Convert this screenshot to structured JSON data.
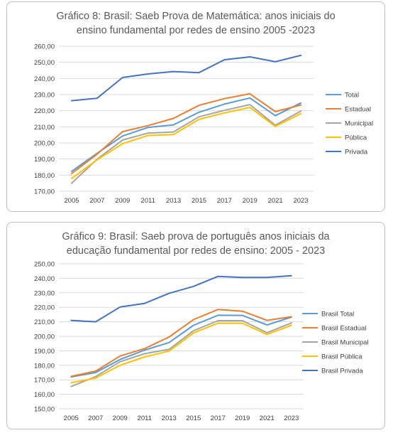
{
  "chart_data": [
    {
      "type": "line",
      "title_lines": [
        "Gráfico 8: Brasil: Saeb Prova de Matemática: anos iniciais do",
        "ensino fundamental por redes de ensino 2005 -2023"
      ],
      "x": [
        "2005",
        "2007",
        "2009",
        "2011",
        "2013",
        "2015",
        "2017",
        "2019",
        "2021",
        "2023"
      ],
      "ylim": [
        170,
        260
      ],
      "yticks": [
        "170,00",
        "180,00",
        "190,00",
        "200,00",
        "210,00",
        "220,00",
        "230,00",
        "240,00",
        "250,00",
        "260,00"
      ],
      "grid": true,
      "legend_position": "right",
      "series": [
        {
          "name": "Total",
          "color": "#5b9bd5",
          "values": [
            182.4,
            193.5,
            204.3,
            209.6,
            211.2,
            219.0,
            224.1,
            227.9,
            216.9,
            224.8
          ]
        },
        {
          "name": "Estadual",
          "color": "#ed7d31",
          "values": [
            181.0,
            193.0,
            207.0,
            210.7,
            215.2,
            223.3,
            227.5,
            230.5,
            219.4,
            223.5
          ]
        },
        {
          "name": "Municipal",
          "color": "#a5a5a5",
          "values": [
            175.0,
            189.9,
            201.8,
            206.1,
            206.8,
            216.2,
            220.2,
            223.8,
            211.0,
            219.8
          ]
        },
        {
          "name": "Pública",
          "color": "#ffc000",
          "values": [
            178.0,
            189.5,
            199.5,
            204.6,
            205.2,
            214.6,
            218.6,
            222.0,
            210.2,
            218.2
          ]
        },
        {
          "name": "Privada",
          "color": "#4472c4",
          "values": [
            226.2,
            227.7,
            240.6,
            242.8,
            244.3,
            243.6,
            251.6,
            253.4,
            250.4,
            254.3
          ]
        }
      ]
    },
    {
      "type": "line",
      "title_lines": [
        "Gráfico 9: Brasil: Saeb prova de português anos iniciais da",
        "educação fundamental por redes de ensino: 2005 - 2023"
      ],
      "x": [
        "2005",
        "2007",
        "2009",
        "2011",
        "2013",
        "2015",
        "2017",
        "2019",
        "2021",
        "2023"
      ],
      "ylim": [
        150,
        250
      ],
      "yticks": [
        "150,00",
        "160,00",
        "170,00",
        "180,00",
        "190,00",
        "200,00",
        "210,00",
        "220,00",
        "230,00",
        "240,00",
        "250,00"
      ],
      "grid": true,
      "legend_position": "right",
      "series": [
        {
          "name": "Brasil Total",
          "color": "#5b9bd5",
          "values": [
            172.0,
            175.0,
            184.0,
            190.5,
            195.7,
            207.6,
            214.5,
            214.4,
            207.8,
            213.2
          ]
        },
        {
          "name": "Brasil Estadual",
          "color": "#ed7d31",
          "values": [
            172.4,
            176.0,
            186.4,
            191.5,
            199.5,
            211.5,
            218.5,
            217.3,
            211.0,
            213.5
          ]
        },
        {
          "name": "Brasil Municipal",
          "color": "#a5a5a5",
          "values": [
            165.4,
            172.2,
            182.5,
            188.0,
            191.0,
            203.8,
            210.8,
            210.8,
            202.5,
            209.2
          ]
        },
        {
          "name": "Brasil Pública",
          "color": "#ffc000",
          "values": [
            168.0,
            171.2,
            180.0,
            185.8,
            189.8,
            202.3,
            209.0,
            209.0,
            201.3,
            207.6
          ]
        },
        {
          "name": "Brasil Privada",
          "color": "#4472c4",
          "values": [
            211.0,
            210.0,
            220.2,
            222.7,
            229.6,
            234.4,
            241.3,
            240.6,
            240.6,
            241.8
          ]
        }
      ]
    }
  ]
}
